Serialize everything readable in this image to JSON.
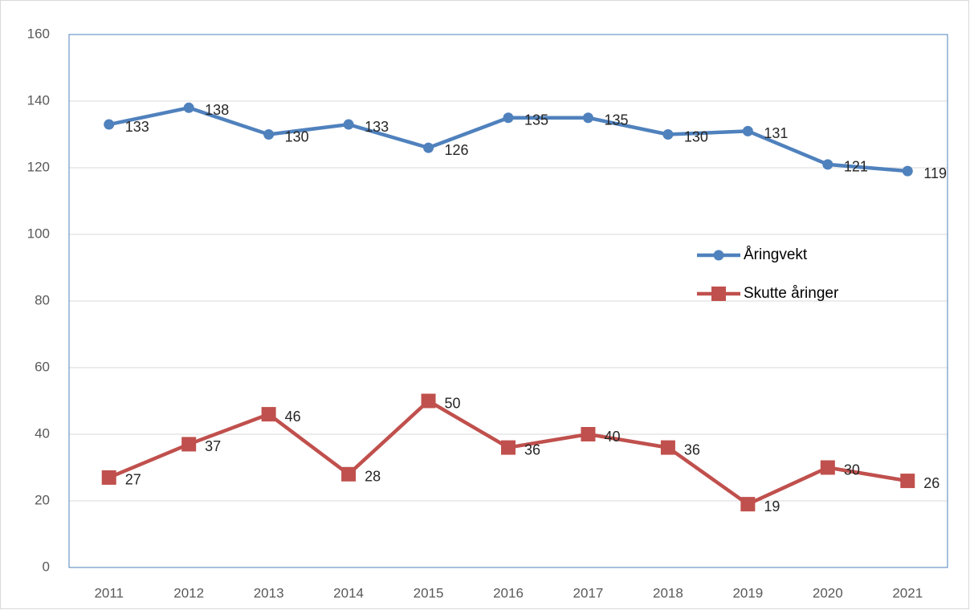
{
  "chart_data": {
    "type": "line",
    "categories": [
      "2011",
      "2012",
      "2013",
      "2014",
      "2015",
      "2016",
      "2017",
      "2018",
      "2019",
      "2020",
      "2021"
    ],
    "series": [
      {
        "name": "Åringvekt",
        "color": "#4f81bd",
        "marker": "circle",
        "values": [
          133,
          138,
          130,
          133,
          126,
          135,
          135,
          130,
          131,
          121,
          119
        ]
      },
      {
        "name": "Skutte åringer",
        "color": "#c0504d",
        "marker": "square",
        "values": [
          27,
          37,
          46,
          28,
          50,
          36,
          40,
          36,
          19,
          30,
          26
        ]
      }
    ],
    "ylim": [
      0,
      160
    ],
    "yticks": [
      0,
      20,
      40,
      60,
      80,
      100,
      120,
      140,
      160
    ],
    "grid": true,
    "legend": "right"
  }
}
